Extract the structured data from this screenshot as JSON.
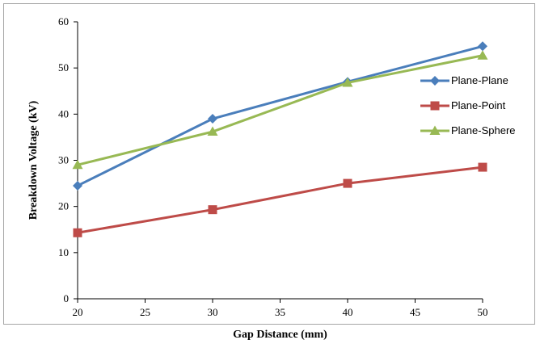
{
  "chart_data": {
    "type": "line",
    "title": "",
    "xlabel": "Gap  Distance (mm)",
    "ylabel": "Breakdown  Voltage  (kV)",
    "xlim": [
      20,
      50
    ],
    "ylim": [
      0,
      60
    ],
    "xticks": [
      20,
      25,
      30,
      35,
      40,
      45,
      50
    ],
    "yticks": [
      0,
      10,
      20,
      30,
      40,
      50,
      60
    ],
    "grid": false,
    "legend_position": "right",
    "x": [
      20,
      30,
      40,
      50
    ],
    "series": [
      {
        "name": "Plane-Plane",
        "values": [
          24.5,
          39,
          47,
          54.7
        ],
        "color": "#4a7ebb",
        "marker": "diamond"
      },
      {
        "name": "Plane-Point",
        "values": [
          14.3,
          19.3,
          25,
          28.5
        ],
        "color": "#be4b48",
        "marker": "square"
      },
      {
        "name": "Plane-Sphere",
        "values": [
          29,
          36.2,
          46.8,
          52.7
        ],
        "color": "#98b954",
        "marker": "triangle"
      }
    ]
  }
}
